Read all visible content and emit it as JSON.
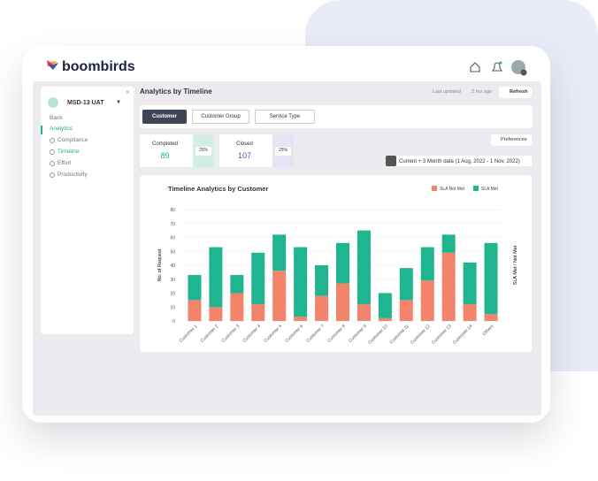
{
  "header": {
    "logo": "boombirds"
  },
  "sidebar": {
    "project": "MSD-13 UAT",
    "items": [
      "Back",
      "Analytics",
      "Compliance",
      "Timeline",
      "Effort",
      "Productivity"
    ]
  },
  "main": {
    "title": "Analytics by Timeline",
    "last_updated": "Last updated",
    "updated_ago": "2 hrs ago",
    "refresh": "Refresh",
    "tabs": [
      "Customer",
      "Customer Group",
      "Service Type"
    ],
    "stats": [
      {
        "label": "Completed",
        "value": "89",
        "percent": "25%"
      },
      {
        "label": "Closed",
        "value": "107",
        "percent": "25%"
      }
    ],
    "preferences": "Preferences",
    "date_range": "Current + 3 Month data (1 Aug, 2022 - 1 Nov, 2022)"
  },
  "chart_data": {
    "type": "stacked_bar",
    "title": "Timeline Analytics by Customer",
    "y_label": "No. of Request",
    "y2_label": "SLA Met / Not Met",
    "categories": [
      "Customer 1",
      "Customer 2",
      "Customer 3",
      "Customer 4",
      "Customer 5",
      "Customer 6",
      "Customer 7",
      "Customer 8",
      "Customer 9",
      "Customer 10",
      "Customer 11",
      "Customer 12",
      "Customer 13",
      "Customer 14",
      "Others"
    ],
    "series": [
      {
        "name": "SLA Not Met",
        "color": "#f4836b",
        "values": [
          15,
          10,
          20,
          12,
          36,
          3,
          18,
          27,
          12,
          2,
          15,
          29,
          49,
          12,
          5
        ]
      },
      {
        "name": "SLA Met",
        "color": "#1fb58f",
        "values": [
          18,
          43,
          13,
          37,
          26,
          50,
          22,
          29,
          53,
          18,
          23,
          24,
          13,
          30,
          51
        ]
      }
    ],
    "ylim": [
      0,
      80
    ],
    "yticks": [
      0,
      10,
      20,
      30,
      40,
      50,
      60,
      70,
      80
    ],
    "grid": true
  }
}
